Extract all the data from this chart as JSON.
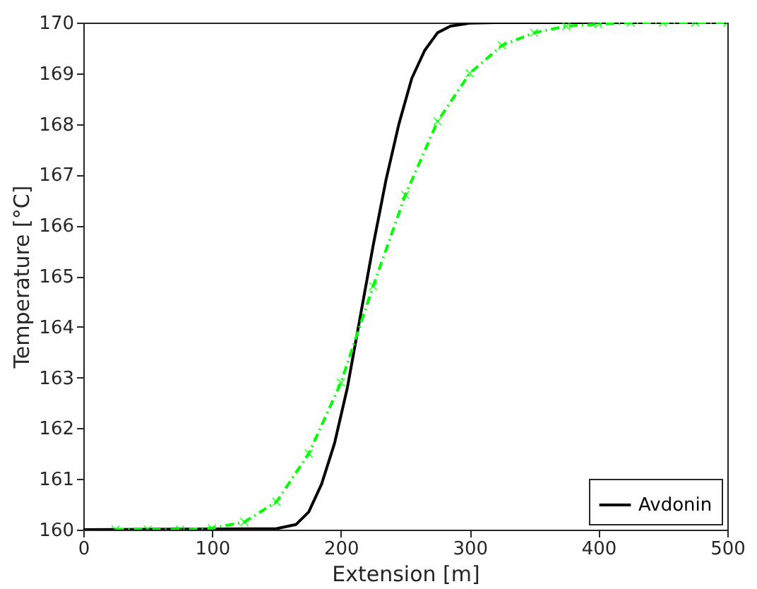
{
  "chart_data": {
    "type": "line",
    "xlabel": "Extension [m]",
    "ylabel": "Temperature [°C]",
    "xlim": [
      0,
      500
    ],
    "xticks": [
      0,
      100,
      200,
      300,
      400,
      500
    ],
    "ylim": [
      160,
      170
    ],
    "yticks": [
      160,
      161,
      162,
      163,
      164,
      165,
      166,
      167,
      168,
      169,
      170
    ],
    "grid": false,
    "legend": "bottom right",
    "series": [
      {
        "name": "Avdonin",
        "color": "#000000",
        "line_style": "solid",
        "marker": "none",
        "x": [
          0,
          150,
          165,
          175,
          185,
          195,
          205,
          215,
          225,
          235,
          245,
          255,
          265,
          275,
          285,
          300,
          320,
          500
        ],
        "values": [
          160,
          160.02,
          160.1,
          160.35,
          160.9,
          161.7,
          162.8,
          164.2,
          165.6,
          166.9,
          168.0,
          168.9,
          169.45,
          169.8,
          169.93,
          169.99,
          170,
          170
        ]
      },
      {
        "color": "#00ff00",
        "line_style": "dashdot",
        "marker": "cross",
        "x": [
          25,
          50,
          75,
          100,
          125,
          150,
          175,
          200,
          225,
          250,
          275,
          300,
          325,
          350,
          375,
          400,
          425,
          450,
          475,
          500
        ],
        "values": [
          160,
          160,
          160,
          160.03,
          160.15,
          160.55,
          161.5,
          162.9,
          164.8,
          166.6,
          168.05,
          169.0,
          169.55,
          169.8,
          169.93,
          169.97,
          170,
          170,
          170,
          170
        ]
      }
    ]
  }
}
